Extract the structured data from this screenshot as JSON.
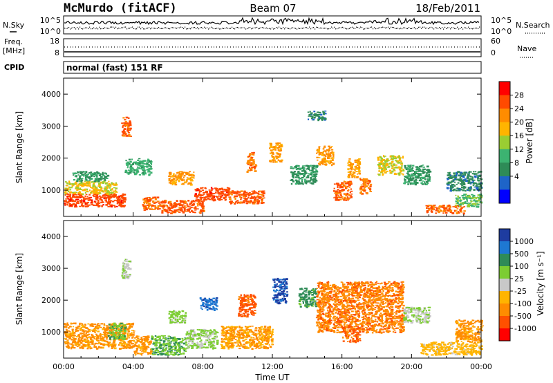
{
  "header": {
    "station": "McMurdo (fitACF)",
    "beam": "Beam 07",
    "date": "18/Feb/2011"
  },
  "panels": {
    "nsky_label": "N.Sky",
    "nsky_ticks": [
      "10^5",
      "10^0"
    ],
    "nsearch_label": "N.Search",
    "nsearch_ticks": [
      "10^5",
      "10^0"
    ],
    "freq_label_1": "Freq.",
    "freq_label_2": "[MHz]",
    "freq_ticks": [
      "18",
      "8"
    ],
    "nave_label": "Nave",
    "nave_ticks": [
      "60",
      "0"
    ],
    "cpid_label": "CPID",
    "cpid_value": "normal (fast) 151 RF"
  },
  "colorbars": {
    "power": {
      "label": "Power [dB]",
      "ticks": [
        "28",
        "24",
        "20",
        "16",
        "12",
        "8",
        "4"
      ],
      "colors": [
        "#ff0000",
        "#ff4a00",
        "#ff8c00",
        "#ffb400",
        "#9acd32",
        "#3cb371",
        "#2e8b57",
        "#1e64c8",
        "#0000ff"
      ]
    },
    "velocity": {
      "label": "Velocity [m s⁻¹]",
      "ticks": [
        "1000",
        "500",
        "100",
        "25",
        "-25",
        "-100",
        "-500",
        "-1000"
      ],
      "colors": [
        "#1e3ca0",
        "#1e78d2",
        "#2e8b57",
        "#7ccd32",
        "#c8c8c8",
        "#ffb400",
        "#ff8c00",
        "#ff5000",
        "#ff0000"
      ]
    }
  },
  "chart_data": [
    {
      "type": "heatmap",
      "title": "Power",
      "ylabel": "Slant Range [km]",
      "xlabel": "",
      "yticks": [
        "1000",
        "2000",
        "3000",
        "4000"
      ],
      "xticks": [
        "00:00",
        "04:00",
        "08:00",
        "12:00",
        "16:00",
        "20:00",
        "00:00"
      ],
      "xlim": [
        0,
        24
      ],
      "ylim": [
        180,
        4500
      ],
      "colorbar": "Power [dB]",
      "cmin": 0,
      "cmax": 32,
      "blobs": [
        {
          "t": [
            0.0,
            3.5
          ],
          "r": [
            500,
            900
          ],
          "v": 27
        },
        {
          "t": [
            0.0,
            3.0
          ],
          "r": [
            900,
            1300
          ],
          "v": 18
        },
        {
          "t": [
            0.5,
            2.5
          ],
          "r": [
            1300,
            1600
          ],
          "v": 10
        },
        {
          "t": [
            3.3,
            3.8
          ],
          "r": [
            2700,
            3300
          ],
          "v": 26
        },
        {
          "t": [
            3.5,
            5.0
          ],
          "r": [
            1500,
            2000
          ],
          "v": 12
        },
        {
          "t": [
            4.5,
            5.5
          ],
          "r": [
            400,
            800
          ],
          "v": 25
        },
        {
          "t": [
            5.5,
            8.0
          ],
          "r": [
            300,
            700
          ],
          "v": 26
        },
        {
          "t": [
            6.0,
            7.5
          ],
          "r": [
            1200,
            1600
          ],
          "v": 22
        },
        {
          "t": [
            7.5,
            9.5
          ],
          "r": [
            700,
            1100
          ],
          "v": 27
        },
        {
          "t": [
            9.5,
            11.5
          ],
          "r": [
            600,
            1000
          ],
          "v": 26
        },
        {
          "t": [
            10.5,
            11.0
          ],
          "r": [
            1600,
            2200
          ],
          "v": 24
        },
        {
          "t": [
            11.8,
            12.5
          ],
          "r": [
            1900,
            2500
          ],
          "v": 22
        },
        {
          "t": [
            13.0,
            14.5
          ],
          "r": [
            1200,
            1800
          ],
          "v": 10
        },
        {
          "t": [
            14.0,
            15.0
          ],
          "r": [
            3200,
            3500
          ],
          "v": 8
        },
        {
          "t": [
            14.5,
            15.5
          ],
          "r": [
            1800,
            2400
          ],
          "v": 22
        },
        {
          "t": [
            15.5,
            16.5
          ],
          "r": [
            700,
            1300
          ],
          "v": 26
        },
        {
          "t": [
            16.3,
            17.0
          ],
          "r": [
            1400,
            2000
          ],
          "v": 22
        },
        {
          "t": [
            17.0,
            17.6
          ],
          "r": [
            900,
            1400
          ],
          "v": 24
        },
        {
          "t": [
            18.0,
            19.5
          ],
          "r": [
            1500,
            2100
          ],
          "v": 18
        },
        {
          "t": [
            19.5,
            21.0
          ],
          "r": [
            1200,
            1800
          ],
          "v": 10
        },
        {
          "t": [
            20.8,
            23.0
          ],
          "r": [
            300,
            550
          ],
          "v": 25
        },
        {
          "t": [
            22.5,
            24.0
          ],
          "r": [
            500,
            900
          ],
          "v": 14
        },
        {
          "t": [
            22.0,
            24.0
          ],
          "r": [
            1000,
            1600
          ],
          "v": 8
        }
      ]
    },
    {
      "type": "heatmap",
      "title": "Velocity",
      "ylabel": "Slant Range [km]",
      "xlabel": "Time UT",
      "yticks": [
        "1000",
        "2000",
        "3000",
        "4000"
      ],
      "xticks": [
        "00:00",
        "04:00",
        "08:00",
        "12:00",
        "16:00",
        "20:00",
        "00:00"
      ],
      "xlim": [
        0,
        24
      ],
      "ylim": [
        180,
        4500
      ],
      "colorbar": "Velocity [m s⁻¹]",
      "cmin": -1000,
      "cmax": 1000,
      "blobs": [
        {
          "t": [
            0.0,
            4.0
          ],
          "r": [
            500,
            1300
          ],
          "v": -400
        },
        {
          "t": [
            2.5,
            3.5
          ],
          "r": [
            800,
            1300
          ],
          "v": 300
        },
        {
          "t": [
            3.3,
            3.8
          ],
          "r": [
            2700,
            3300
          ],
          "v": 100
        },
        {
          "t": [
            4.0,
            5.0
          ],
          "r": [
            300,
            900
          ],
          "v": -400
        },
        {
          "t": [
            5.0,
            7.0
          ],
          "r": [
            300,
            900
          ],
          "v": 300
        },
        {
          "t": [
            6.0,
            7.0
          ],
          "r": [
            1300,
            1700
          ],
          "v": 200
        },
        {
          "t": [
            7.0,
            8.8
          ],
          "r": [
            500,
            1100
          ],
          "v": 150
        },
        {
          "t": [
            7.8,
            8.8
          ],
          "r": [
            1700,
            2100
          ],
          "v": 700
        },
        {
          "t": [
            9.0,
            12.0
          ],
          "r": [
            500,
            1200
          ],
          "v": -350
        },
        {
          "t": [
            10.0,
            11.0
          ],
          "r": [
            1500,
            2200
          ],
          "v": -600
        },
        {
          "t": [
            12.0,
            12.8
          ],
          "r": [
            1900,
            2700
          ],
          "v": 800
        },
        {
          "t": [
            13.5,
            14.5
          ],
          "r": [
            1800,
            2400
          ],
          "v": 400
        },
        {
          "t": [
            14.5,
            19.5
          ],
          "r": [
            1000,
            2600
          ],
          "v": -500
        },
        {
          "t": [
            16.0,
            17.0
          ],
          "r": [
            700,
            1200
          ],
          "v": -600
        },
        {
          "t": [
            19.5,
            21.0
          ],
          "r": [
            1300,
            1800
          ],
          "v": 100
        },
        {
          "t": [
            20.5,
            24.0
          ],
          "r": [
            300,
            700
          ],
          "v": -200
        },
        {
          "t": [
            22.5,
            24.0
          ],
          "r": [
            700,
            1400
          ],
          "v": -400
        }
      ]
    }
  ]
}
